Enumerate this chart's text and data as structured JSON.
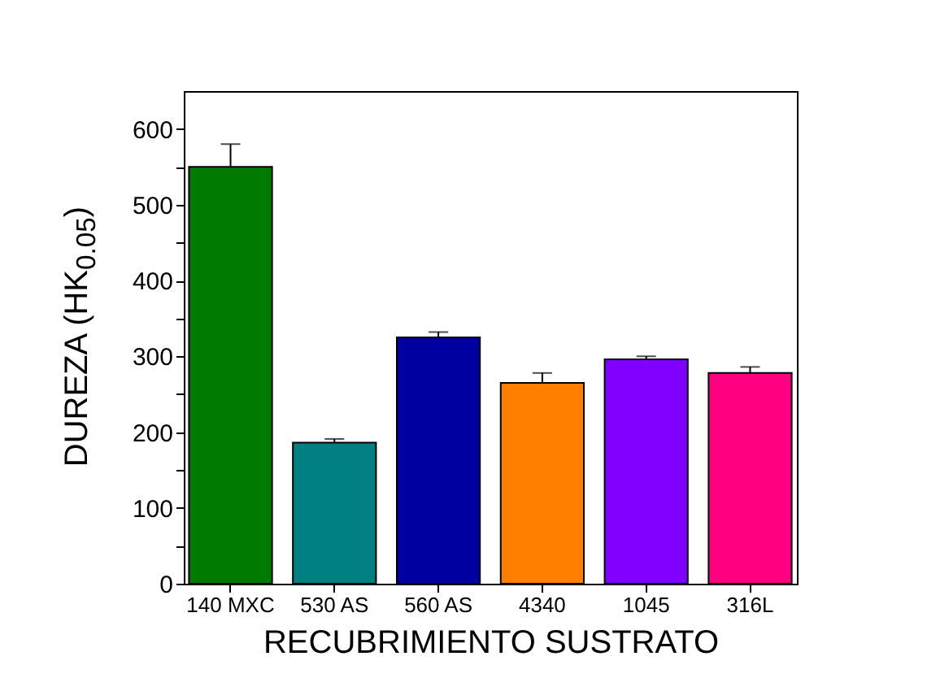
{
  "chart_data": {
    "type": "bar",
    "categories": [
      "140 MXC",
      "530 AS",
      "560 AS",
      "4340",
      "1045",
      "316L"
    ],
    "values": [
      550,
      186,
      325,
      265,
      296,
      278
    ],
    "errors": [
      [
        550,
        580
      ],
      [
        186,
        191
      ],
      [
        325,
        332
      ],
      [
        265,
        278
      ],
      [
        296,
        300
      ],
      [
        278,
        286
      ]
    ],
    "colors": [
      "#007a00",
      "#008080",
      "#0000a0",
      "#ff8000",
      "#8000ff",
      "#ff0080"
    ],
    "xlabel": "RECUBRIMIENTO SUSTRATO",
    "ylabel": "DUREZA (HK$_{0.05}$)",
    "ylim": [
      0,
      650
    ],
    "yticks": [
      0,
      {
        "value": 50,
        "label": null
      },
      100,
      {
        "value": 150,
        "label": null
      },
      200,
      {
        "value": 250,
        "label": null
      },
      300,
      {
        "value": 350,
        "label": null
      },
      400,
      {
        "value": 450,
        "label": null
      },
      500,
      {
        "value": 550,
        "label": null
      },
      600
    ],
    "grid": false,
    "legend": false
  }
}
